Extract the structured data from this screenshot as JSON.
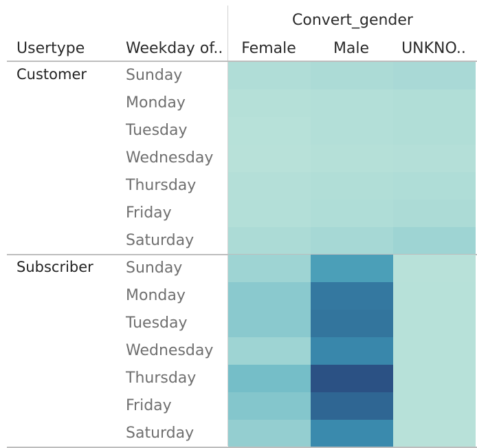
{
  "header": {
    "column_group_title": "Convert_gender",
    "row_header_1": "Usertype",
    "row_header_2": "Weekday of..",
    "columns": [
      "Female",
      "Male",
      "UNKNO.."
    ]
  },
  "chart_data": {
    "type": "heatmap",
    "row_groups": [
      {
        "name": "Customer",
        "rows": [
          "Sunday",
          "Monday",
          "Tuesday",
          "Wednesday",
          "Thursday",
          "Friday",
          "Saturday"
        ],
        "values": [
          [
            0.1,
            0.13,
            0.16
          ],
          [
            0.06,
            0.08,
            0.09
          ],
          [
            0.05,
            0.08,
            0.09
          ],
          [
            0.04,
            0.06,
            0.07
          ],
          [
            0.07,
            0.09,
            0.11
          ],
          [
            0.08,
            0.11,
            0.13
          ],
          [
            0.13,
            0.18,
            0.24
          ]
        ]
      },
      {
        "name": "Subscriber",
        "rows": [
          "Sunday",
          "Monday",
          "Tuesday",
          "Wednesday",
          "Thursday",
          "Friday",
          "Saturday"
        ],
        "values": [
          [
            0.24,
            0.56,
            0.04
          ],
          [
            0.31,
            0.8,
            0.05
          ],
          [
            0.31,
            0.82,
            0.05
          ],
          [
            0.24,
            0.7,
            0.05
          ],
          [
            0.38,
            1.0,
            0.05
          ],
          [
            0.33,
            0.9,
            0.05
          ],
          [
            0.28,
            0.68,
            0.04
          ]
        ]
      }
    ],
    "color_scale": {
      "min_color": "#bde4da",
      "max_color": "#2b5184",
      "range": [
        0,
        1
      ]
    }
  }
}
